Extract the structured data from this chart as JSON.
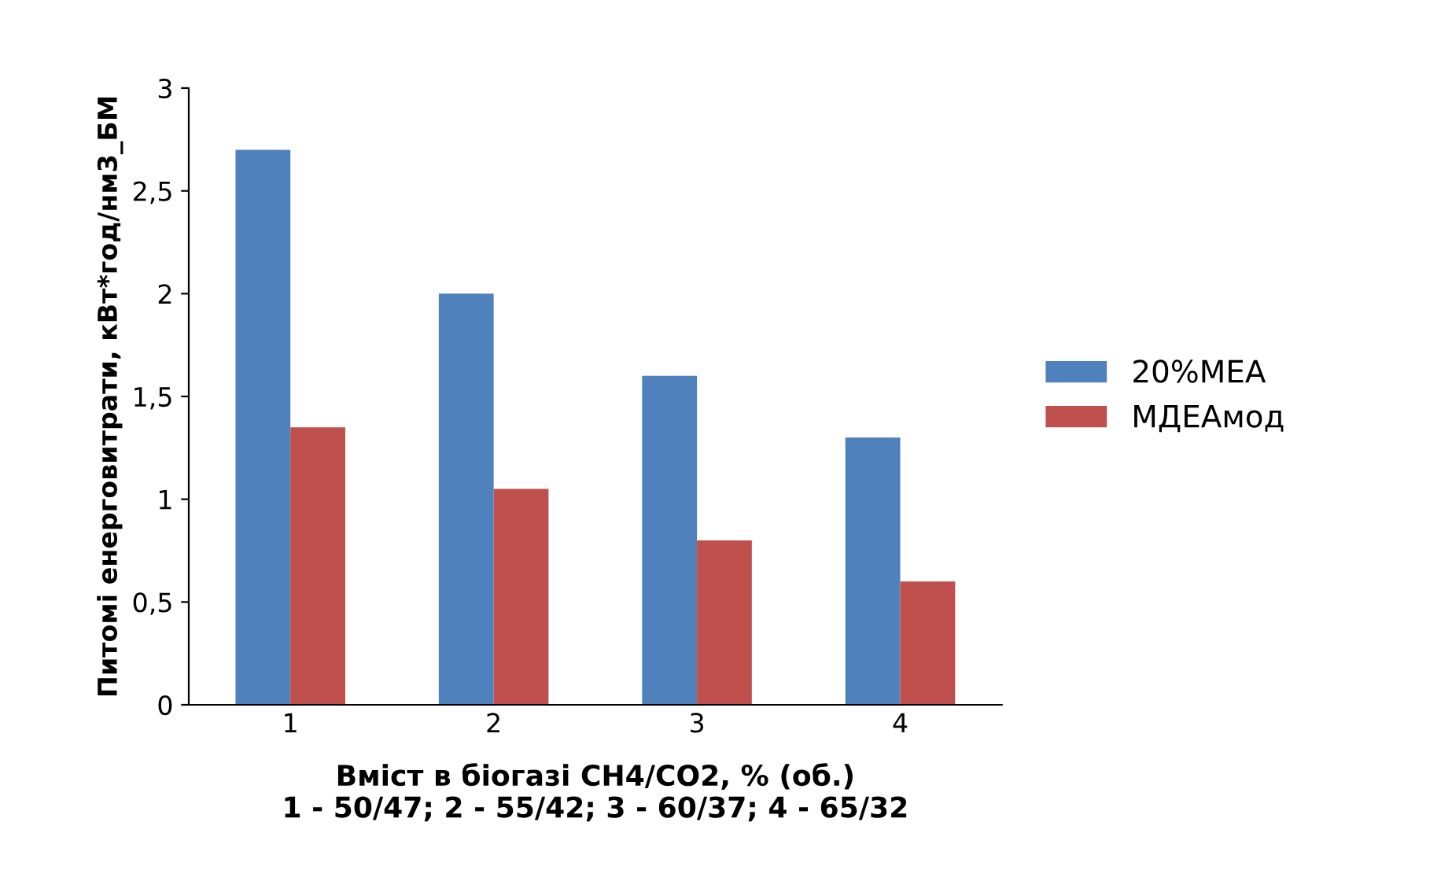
{
  "chart_data": {
    "type": "bar",
    "xlabel": "Вміст в біогазі CH4/CO2, % (об.)\n1 - 50/47; 2 - 55/42; 3 - 60/37; 4 - 65/32",
    "ylabel": "Питомі енерговитрати, кВт*год/нм3_БМ",
    "categories": [
      "1",
      "2",
      "3",
      "4"
    ],
    "series": [
      {
        "name": "20%МЕА",
        "color": "#4f81bd",
        "values": [
          2.7,
          2.0,
          1.6,
          1.3
        ]
      },
      {
        "name": "МДЕАмод",
        "color": "#c0504d",
        "values": [
          1.35,
          1.05,
          0.8,
          0.6
        ]
      }
    ],
    "ylim": [
      0,
      3
    ],
    "yticks": [
      0,
      {
        "value": 0.5,
        "label": "0,5"
      },
      1,
      {
        "value": 1.5,
        "label": "1,5"
      },
      2,
      {
        "value": 2.5,
        "label": "2,5"
      },
      3
    ],
    "grid": false,
    "legend": "right"
  }
}
